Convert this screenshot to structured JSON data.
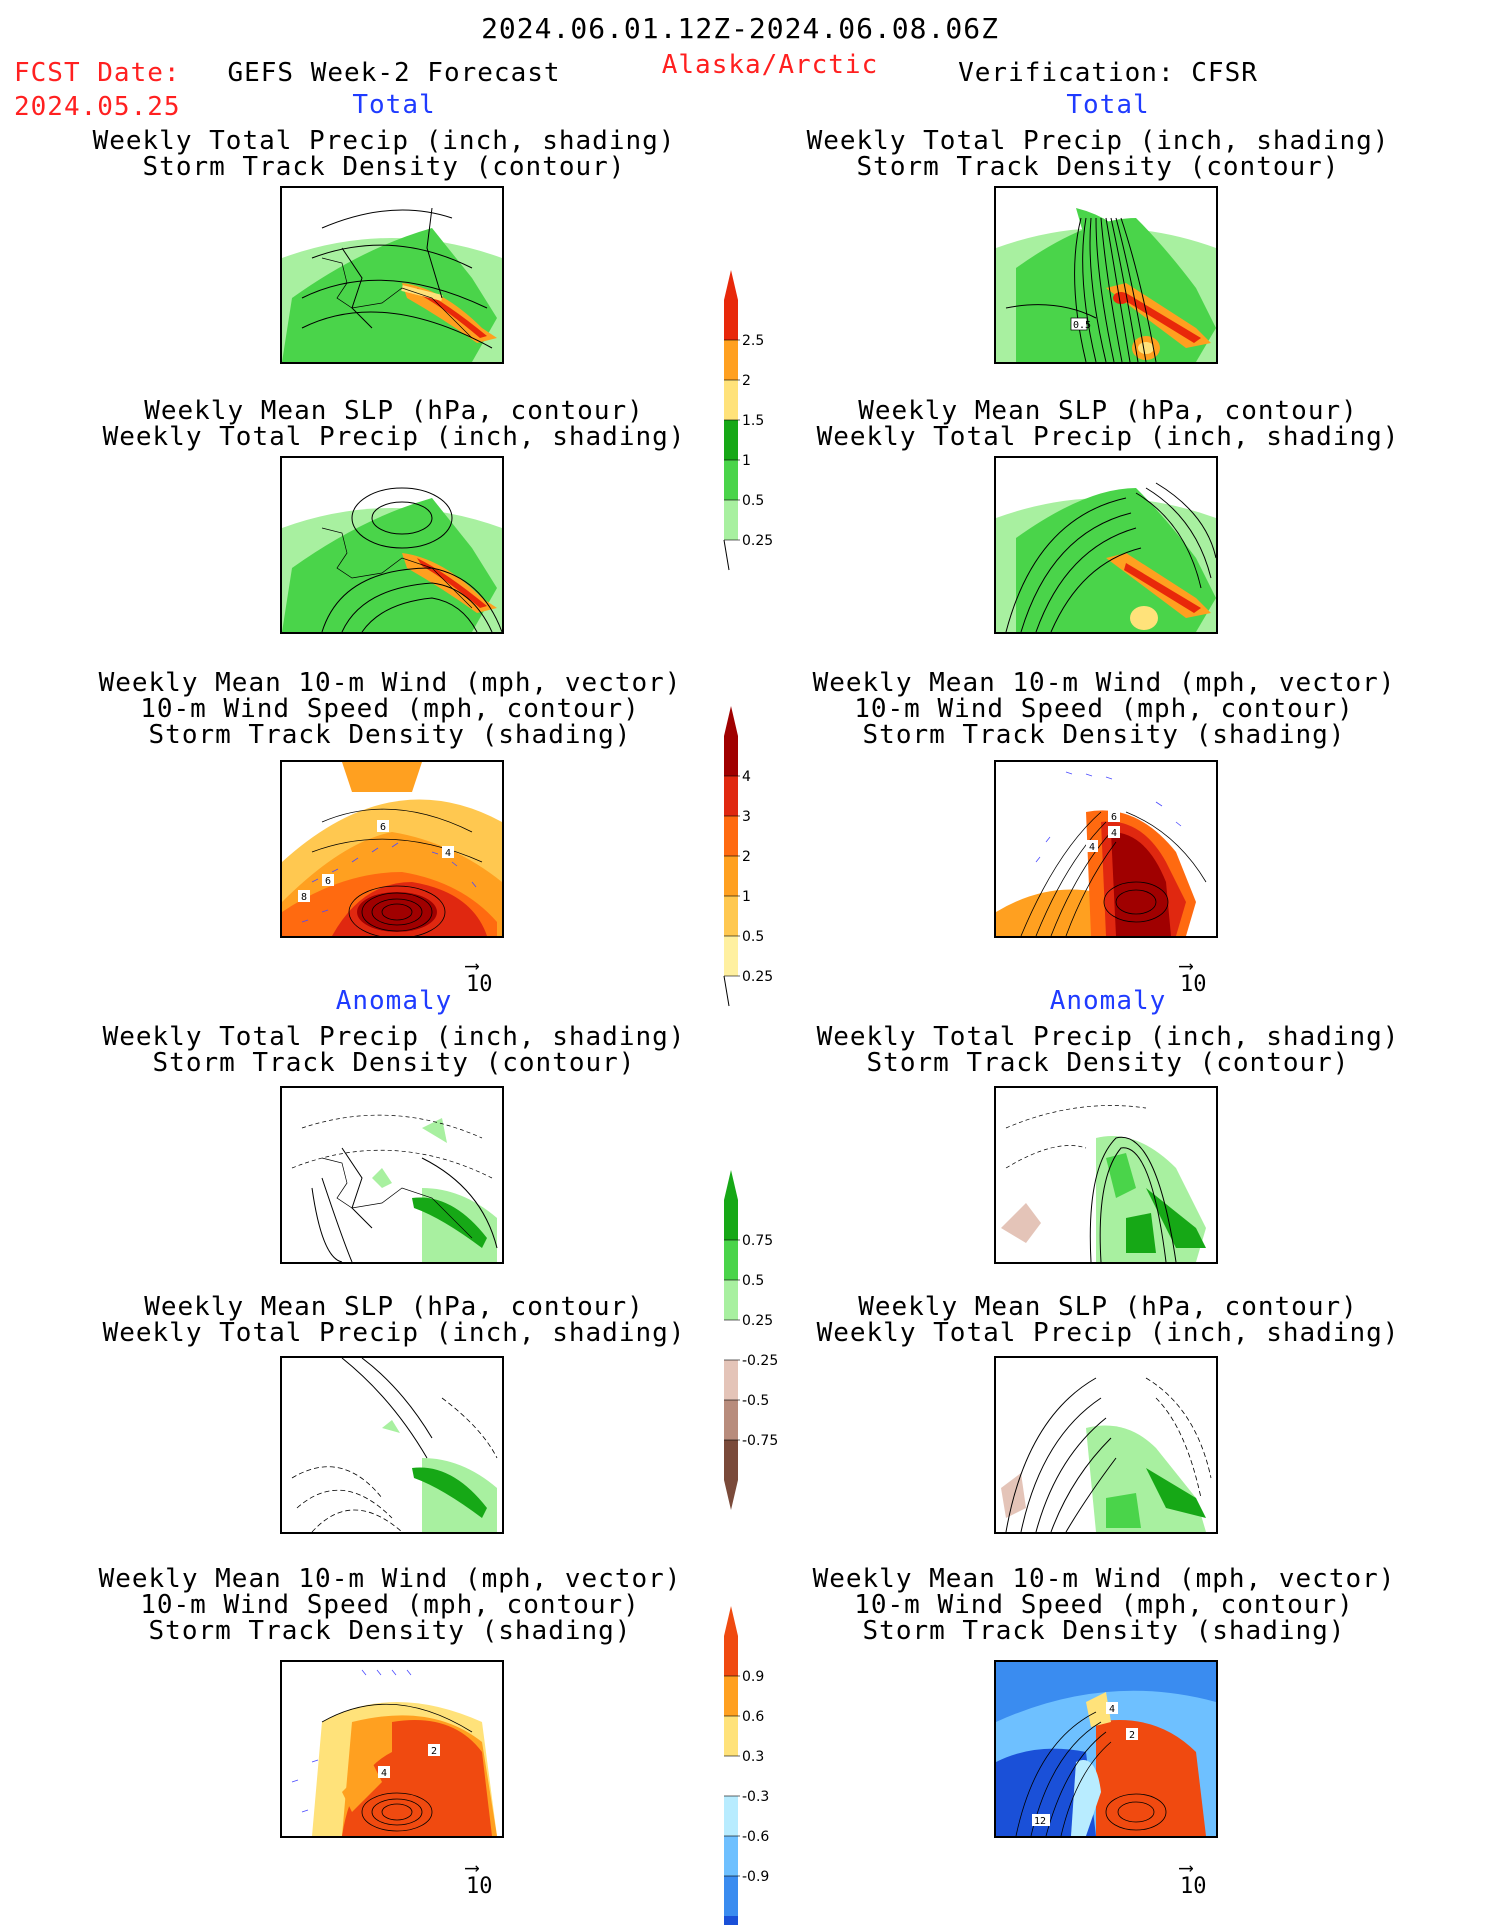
{
  "header": {
    "date_range": "2024.06.01.12Z-2024.06.08.06Z",
    "fcst_label": "FCST Date:",
    "fcst_date": "2024.05.25",
    "model": "GEFS Week-2 Forecast",
    "region": "Alaska/Arctic",
    "verification": "Verification: CFSR"
  },
  "sections": {
    "total_left": "Total",
    "total_right": "Total",
    "anomaly_left": "Anomaly",
    "anomaly_right": "Anomaly"
  },
  "titles": {
    "precip_track": [
      "Weekly Total Precip (inch, shading)",
      "Storm Track Density (contour)"
    ],
    "slp_precip": [
      "Weekly Mean SLP (hPa, contour)",
      "Weekly Total Precip (inch, shading)"
    ],
    "wind_track": [
      "Weekly Mean 10-m Wind (mph, vector)",
      "10-m Wind Speed (mph, contour)",
      "Storm Track Density (shading)"
    ]
  },
  "vector_scale": "10",
  "colorbars": {
    "total_precip": {
      "labels": [
        "2.5",
        "2",
        "1.5",
        "1",
        "0.5",
        "0.25"
      ],
      "colors": [
        "#e8280a",
        "#ffa020",
        "#ffe27a",
        "#16a816",
        "#4ad44a",
        "#a8f0a0"
      ]
    },
    "total_track": {
      "labels": [
        "4",
        "3",
        "2",
        "1",
        "0.5",
        "0.25"
      ],
      "colors": [
        "#a00000",
        "#e02810",
        "#ff6a10",
        "#ffa020",
        "#ffc850",
        "#fff0a0"
      ]
    },
    "anom_precip": {
      "labels": [
        "0.75",
        "0.5",
        "0.25",
        "-0.25",
        "-0.5",
        "-0.75"
      ],
      "colors": [
        "#16a816",
        "#4ad44a",
        "#a8f0a0",
        "#ffffff",
        "#e4c4b8",
        "#b88c7c",
        "#7a4a3a"
      ]
    },
    "anom_track": {
      "labels": [
        "0.9",
        "0.6",
        "0.3",
        "-0.3",
        "-0.6",
        "-0.9"
      ],
      "colors": [
        "#f04a10",
        "#ffa020",
        "#ffe27a",
        "#ffffff",
        "#b8ecff",
        "#6ec0ff",
        "#3a8cf0",
        "#1a50d8"
      ]
    }
  },
  "map_labels": {
    "p1_right": "0.5",
    "w1_left": [
      "8",
      "6",
      "4",
      "6"
    ],
    "w1_right": [
      "4",
      "6",
      "4"
    ],
    "w2_left": [
      "4",
      "2"
    ],
    "w2_right": [
      "4",
      "2",
      "12"
    ]
  }
}
